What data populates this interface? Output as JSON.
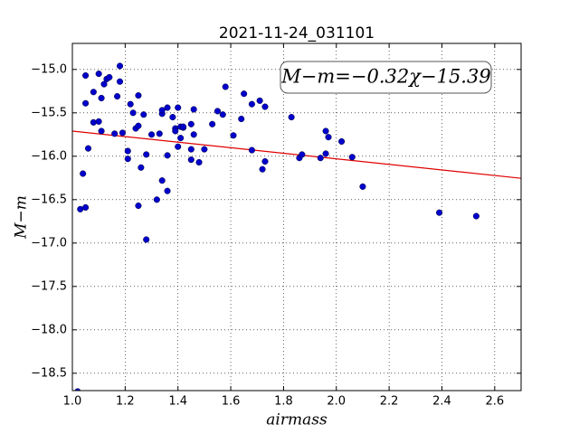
{
  "chart_data": {
    "type": "scatter",
    "title": "2021-11-24_031101",
    "xlabel": "airmass",
    "ylabel": "M−m",
    "annotation": "M−m=−0.32χ−15.39",
    "color": "#0000cc",
    "x": [
      1.02,
      1.03,
      1.05,
      1.04,
      1.05,
      1.05,
      1.06,
      1.08,
      1.08,
      1.1,
      1.1,
      1.11,
      1.11,
      1.12,
      1.13,
      1.14,
      1.16,
      1.17,
      1.18,
      1.18,
      1.19,
      1.21,
      1.21,
      1.22,
      1.23,
      1.24,
      1.25,
      1.25,
      1.25,
      1.26,
      1.27,
      1.28,
      1.28,
      1.3,
      1.32,
      1.33,
      1.34,
      1.34,
      1.34,
      1.36,
      1.36,
      1.36,
      1.38,
      1.39,
      1.39,
      1.4,
      1.4,
      1.41,
      1.41,
      1.42,
      1.42,
      1.45,
      1.45,
      1.45,
      1.46,
      1.46,
      1.48,
      1.5,
      1.53,
      1.55,
      1.57,
      1.58,
      1.61,
      1.64,
      1.65,
      1.68,
      1.68,
      1.71,
      1.72,
      1.73,
      1.73,
      1.83,
      1.86,
      1.87,
      1.94,
      1.96,
      1.96,
      1.97,
      2.02,
      2.06,
      2.1,
      2.39,
      2.53
    ],
    "values": [
      -18.71,
      -16.61,
      -16.59,
      -16.2,
      -15.07,
      -15.39,
      -15.91,
      -15.26,
      -15.61,
      -15.05,
      -15.6,
      -15.33,
      -15.71,
      -15.17,
      -15.11,
      -15.09,
      -15.74,
      -15.31,
      -14.96,
      -15.14,
      -15.73,
      -15.94,
      -16.03,
      -15.4,
      -15.5,
      -15.68,
      -16.57,
      -15.65,
      -15.3,
      -16.13,
      -15.52,
      -16.96,
      -15.98,
      -15.75,
      -16.5,
      -15.74,
      -16.28,
      -15.51,
      -15.47,
      -15.99,
      -15.44,
      -16.4,
      -15.55,
      -15.68,
      -15.71,
      -15.89,
      -15.44,
      -15.66,
      -15.79,
      -15.67,
      -15.66,
      -15.63,
      -15.92,
      -16.04,
      -15.75,
      -15.46,
      -16.07,
      -15.92,
      -15.63,
      -15.48,
      -15.52,
      -15.2,
      -15.76,
      -15.57,
      -15.28,
      -15.4,
      -15.93,
      -15.36,
      -16.15,
      -15.43,
      -16.06,
      -15.55,
      -16.02,
      -15.98,
      -16.02,
      -15.71,
      -15.97,
      -15.78,
      -15.83,
      -16.01,
      -16.35,
      -16.65,
      -16.69
    ],
    "fit": {
      "x": [
        1.0,
        2.7
      ],
      "values": [
        -15.71,
        -16.254
      ],
      "color": "#e00000"
    },
    "xlim": [
      1.0,
      2.7
    ],
    "ylim": [
      -18.7,
      -14.7
    ],
    "xticks": [
      {
        "value": 1.0,
        "label": "1.0"
      },
      1.2,
      1.4,
      1.6,
      1.8,
      {
        "value": 2.0,
        "label": "2.0"
      },
      2.2,
      2.4,
      2.6
    ],
    "yticks": [
      {
        "value": -15.0,
        "label": "−15.0"
      },
      {
        "value": -15.5,
        "label": "−15.5"
      },
      {
        "value": -16.0,
        "label": "−16.0"
      },
      {
        "value": -16.5,
        "label": "−16.5"
      },
      {
        "value": -17.0,
        "label": "−17.0"
      },
      {
        "value": -17.5,
        "label": "−17.5"
      },
      {
        "value": -18.0,
        "label": "−18.0"
      },
      {
        "value": -18.5,
        "label": "−18.5"
      }
    ],
    "grid": true
  }
}
